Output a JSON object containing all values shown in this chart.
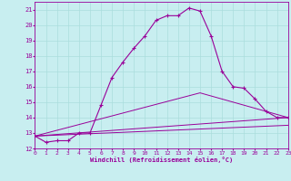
{
  "xlabel": "Windchill (Refroidissement éolien,°C)",
  "xlim": [
    0,
    23
  ],
  "ylim": [
    12,
    21.5
  ],
  "xticks": [
    0,
    1,
    2,
    3,
    4,
    5,
    6,
    7,
    8,
    9,
    10,
    11,
    12,
    13,
    14,
    15,
    16,
    17,
    18,
    19,
    20,
    21,
    22,
    23
  ],
  "yticks": [
    12,
    13,
    14,
    15,
    16,
    17,
    18,
    19,
    20,
    21
  ],
  "bg_color": "#c8eef0",
  "line_color": "#990099",
  "grid_color": "#aadddd",
  "line1_x": [
    0,
    1,
    2,
    3,
    4,
    5,
    6,
    7,
    8,
    9,
    10,
    11,
    12,
    13,
    14,
    15,
    16,
    17,
    18,
    19,
    20,
    21,
    22,
    23
  ],
  "line1_y": [
    12.8,
    12.4,
    12.5,
    12.5,
    13.0,
    13.0,
    14.8,
    16.6,
    17.6,
    18.5,
    19.3,
    20.3,
    20.6,
    20.6,
    21.1,
    20.9,
    19.3,
    17.0,
    16.0,
    15.9,
    15.2,
    14.4,
    14.0,
    14.0
  ],
  "line2_x": [
    0,
    23
  ],
  "line2_y": [
    12.8,
    14.0
  ],
  "line3_x": [
    0,
    15,
    23
  ],
  "line3_y": [
    12.8,
    15.6,
    14.0
  ],
  "line4_x": [
    0,
    23
  ],
  "line4_y": [
    12.8,
    13.5
  ]
}
